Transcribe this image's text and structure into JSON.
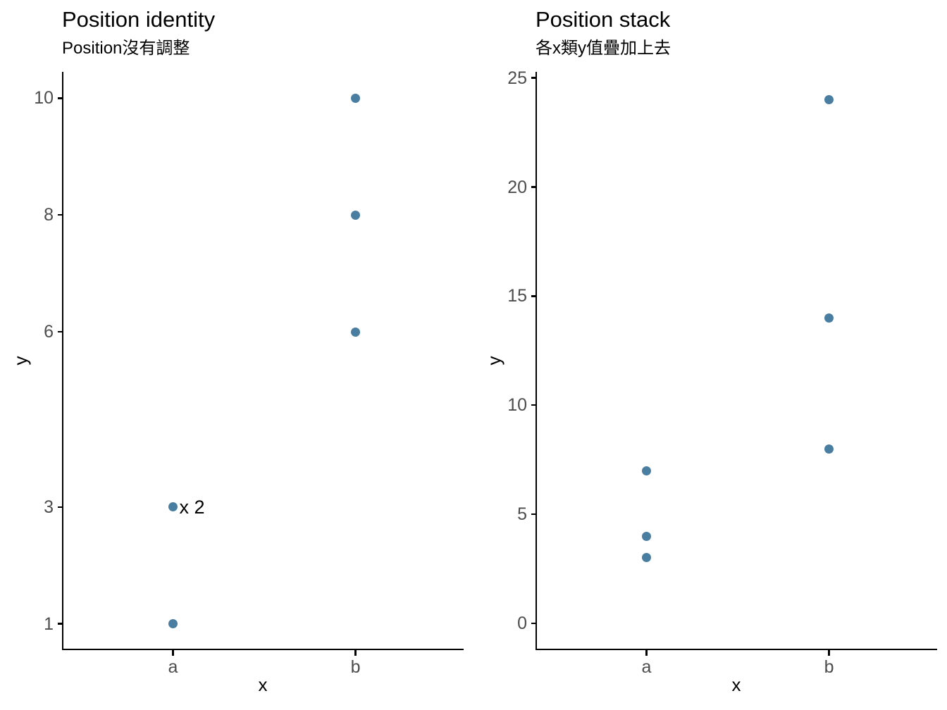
{
  "page": {
    "background": "#ffffff"
  },
  "colors": {
    "point": "#4A7EA0",
    "axis_line": "#000000",
    "tick_label": "#4d4d4d",
    "text": "#000000"
  },
  "chart_data": [
    {
      "type": "scatter",
      "title": "Position identity",
      "subtitle": "Position沒有調整",
      "xlabel": "x",
      "ylabel": "y",
      "categories": [
        "a",
        "b"
      ],
      "points": [
        {
          "x": "a",
          "y": 3
        },
        {
          "x": "a",
          "y": 1
        },
        {
          "x": "b",
          "y": 10
        },
        {
          "x": "b",
          "y": 8
        },
        {
          "x": "b",
          "y": 6
        }
      ],
      "annotation": {
        "text": "x 2",
        "x": "a",
        "y": 3
      },
      "yticks": [
        1,
        3,
        6,
        8,
        10
      ],
      "ylim": [
        0.55,
        10.45
      ],
      "grid": false,
      "legend": false
    },
    {
      "type": "scatter",
      "title": "Position stack",
      "subtitle": "各x類y值疊加上去",
      "xlabel": "x",
      "ylabel": "y",
      "categories": [
        "a",
        "b"
      ],
      "points": [
        {
          "x": "a",
          "y": 7
        },
        {
          "x": "a",
          "y": 4
        },
        {
          "x": "a",
          "y": 3
        },
        {
          "x": "b",
          "y": 24
        },
        {
          "x": "b",
          "y": 14
        },
        {
          "x": "b",
          "y": 8
        }
      ],
      "yticks": [
        0,
        5,
        10,
        15,
        20,
        25
      ],
      "ylim": [
        -1.23,
        25.28
      ],
      "grid": false,
      "legend": false
    }
  ]
}
